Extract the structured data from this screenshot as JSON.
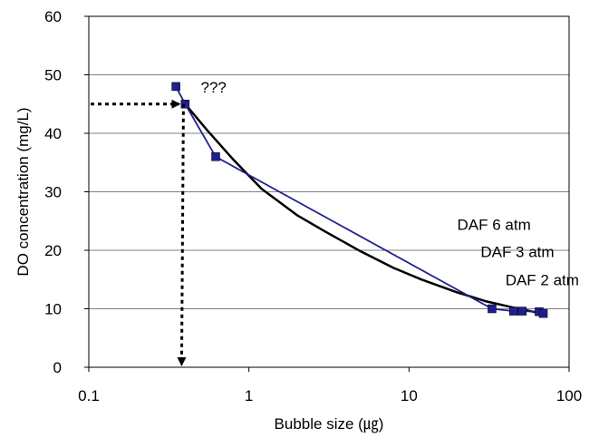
{
  "chart_data": {
    "type": "line",
    "title": "",
    "xlabel": "Bubble size (㎍)",
    "ylabel": "DO concentration (mg/L)",
    "x_scale": "log",
    "xlim": [
      0.1,
      100
    ],
    "ylim": [
      0,
      60
    ],
    "x_ticks": [
      0.1,
      1,
      10,
      100
    ],
    "x_tick_labels": [
      "0.1",
      "1",
      "10",
      "100"
    ],
    "y_ticks": [
      0,
      10,
      20,
      30,
      40,
      50,
      60
    ],
    "y_tick_labels": [
      "0",
      "10",
      "20",
      "30",
      "40",
      "50",
      "60"
    ],
    "grid": "horizontal",
    "legend": "none",
    "series": [
      {
        "color": "#1f1f8f",
        "marker": "square",
        "points": [
          {
            "x": 0.35,
            "y": 48
          },
          {
            "x": 0.4,
            "y": 45
          },
          {
            "x": 0.62,
            "y": 36
          },
          {
            "x": 33,
            "y": 10
          },
          {
            "x": 45,
            "y": 9.6
          },
          {
            "x": 51,
            "y": 9.6
          },
          {
            "x": 65,
            "y": 9.5
          },
          {
            "x": 69,
            "y": 9.2
          }
        ]
      },
      {
        "color": "#000000",
        "marker": "none",
        "points": [
          {
            "x": 0.4,
            "y": 45
          },
          {
            "x": 0.55,
            "y": 40.5
          },
          {
            "x": 0.8,
            "y": 35.5
          },
          {
            "x": 1.2,
            "y": 30.5
          },
          {
            "x": 2,
            "y": 26
          },
          {
            "x": 3,
            "y": 23.2
          },
          {
            "x": 5,
            "y": 19.8
          },
          {
            "x": 8,
            "y": 17
          },
          {
            "x": 12,
            "y": 15
          },
          {
            "x": 20,
            "y": 12.8
          },
          {
            "x": 30,
            "y": 11.3
          },
          {
            "x": 45,
            "y": 10.2
          },
          {
            "x": 70,
            "y": 9.1
          }
        ]
      }
    ],
    "annotations": [
      {
        "text": "???",
        "x": 0.5,
        "y": 47
      },
      {
        "text": "DAF 6 atm",
        "x": 20,
        "y": 23.5
      },
      {
        "text": "DAF 3 atm",
        "x": 28,
        "y": 18.8
      },
      {
        "text": "DAF 2 atm",
        "x": 40,
        "y": 14
      }
    ],
    "reference_arrows": [
      {
        "from": {
          "x": 0.1,
          "y": 45
        },
        "to": {
          "x": 0.38,
          "y": 45
        }
      },
      {
        "from": {
          "x": 0.38,
          "y": 45
        },
        "to": {
          "x": 0.38,
          "y": 0
        }
      }
    ]
  }
}
